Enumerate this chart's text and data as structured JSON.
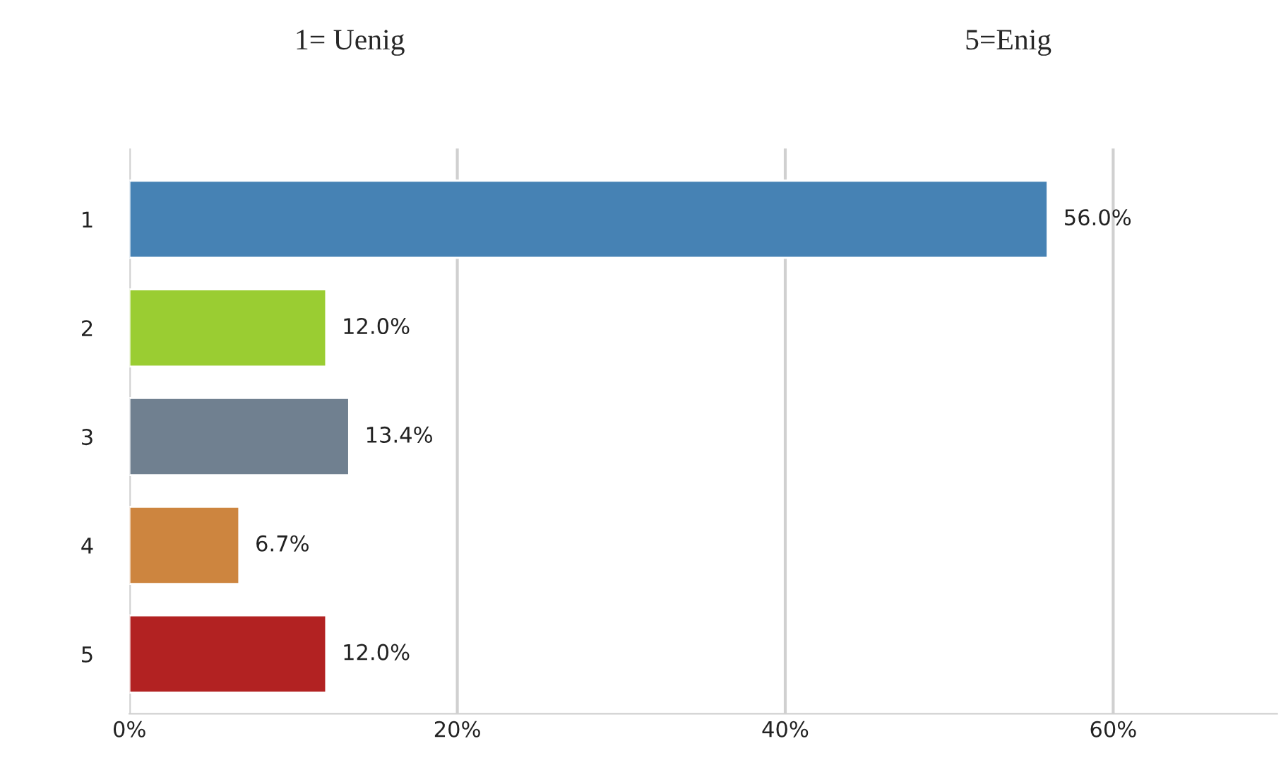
{
  "chart_data": {
    "type": "bar",
    "orientation": "horizontal",
    "annotations": [
      "1= Uenig",
      "5=Enig"
    ],
    "categories": [
      "1",
      "2",
      "3",
      "4",
      "5"
    ],
    "values": [
      56.0,
      12.0,
      13.4,
      6.7,
      12.0
    ],
    "colors": [
      "#4682b4",
      "#9acd32",
      "#708090",
      "#cd853f",
      "#b22222"
    ],
    "value_labels": [
      "56.0%",
      "12.0%",
      "13.4%",
      "6.7%",
      "12.0%"
    ],
    "xlim": [
      0,
      70
    ],
    "xticks": [
      {
        "value": 0,
        "label": "0%"
      },
      {
        "value": 20,
        "label": "20%"
      },
      {
        "value": 40,
        "label": "40%"
      },
      {
        "value": 60,
        "label": "60%"
      }
    ],
    "grid": "x",
    "legend": false
  }
}
